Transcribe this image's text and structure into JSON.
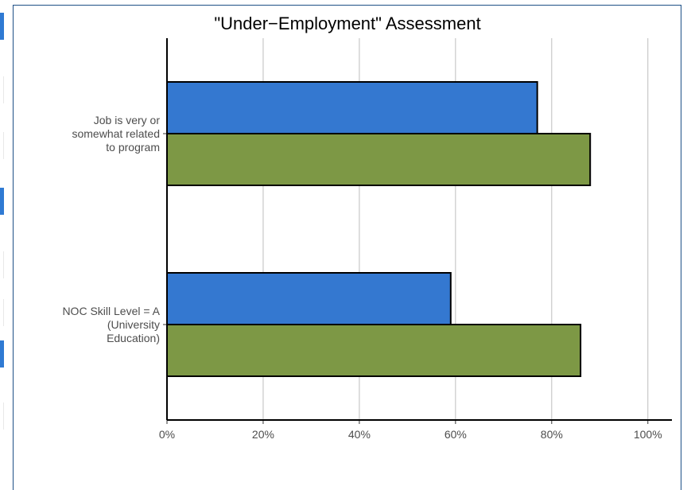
{
  "chart_data": {
    "type": "bar",
    "orientation": "horizontal",
    "title": "\"Under−Employment\" Assessment",
    "categories": [
      [
        "Job is very or",
        "somewhat related",
        "to program"
      ],
      [
        "NOC Skill Level = A",
        "(University",
        "Education)"
      ]
    ],
    "series": [
      {
        "color": "#3478d0",
        "values": [
          0.77,
          0.59
        ]
      },
      {
        "color": "#7d9845",
        "values": [
          0.88,
          0.86
        ]
      }
    ],
    "xlim": [
      0,
      1.05
    ],
    "xticks": [
      0,
      0.2,
      0.4,
      0.6,
      0.8,
      1.0
    ],
    "xtick_labels": [
      "0%",
      "20%",
      "40%",
      "60%",
      "80%",
      "100%"
    ],
    "grid": "vertical",
    "legend": "none"
  }
}
